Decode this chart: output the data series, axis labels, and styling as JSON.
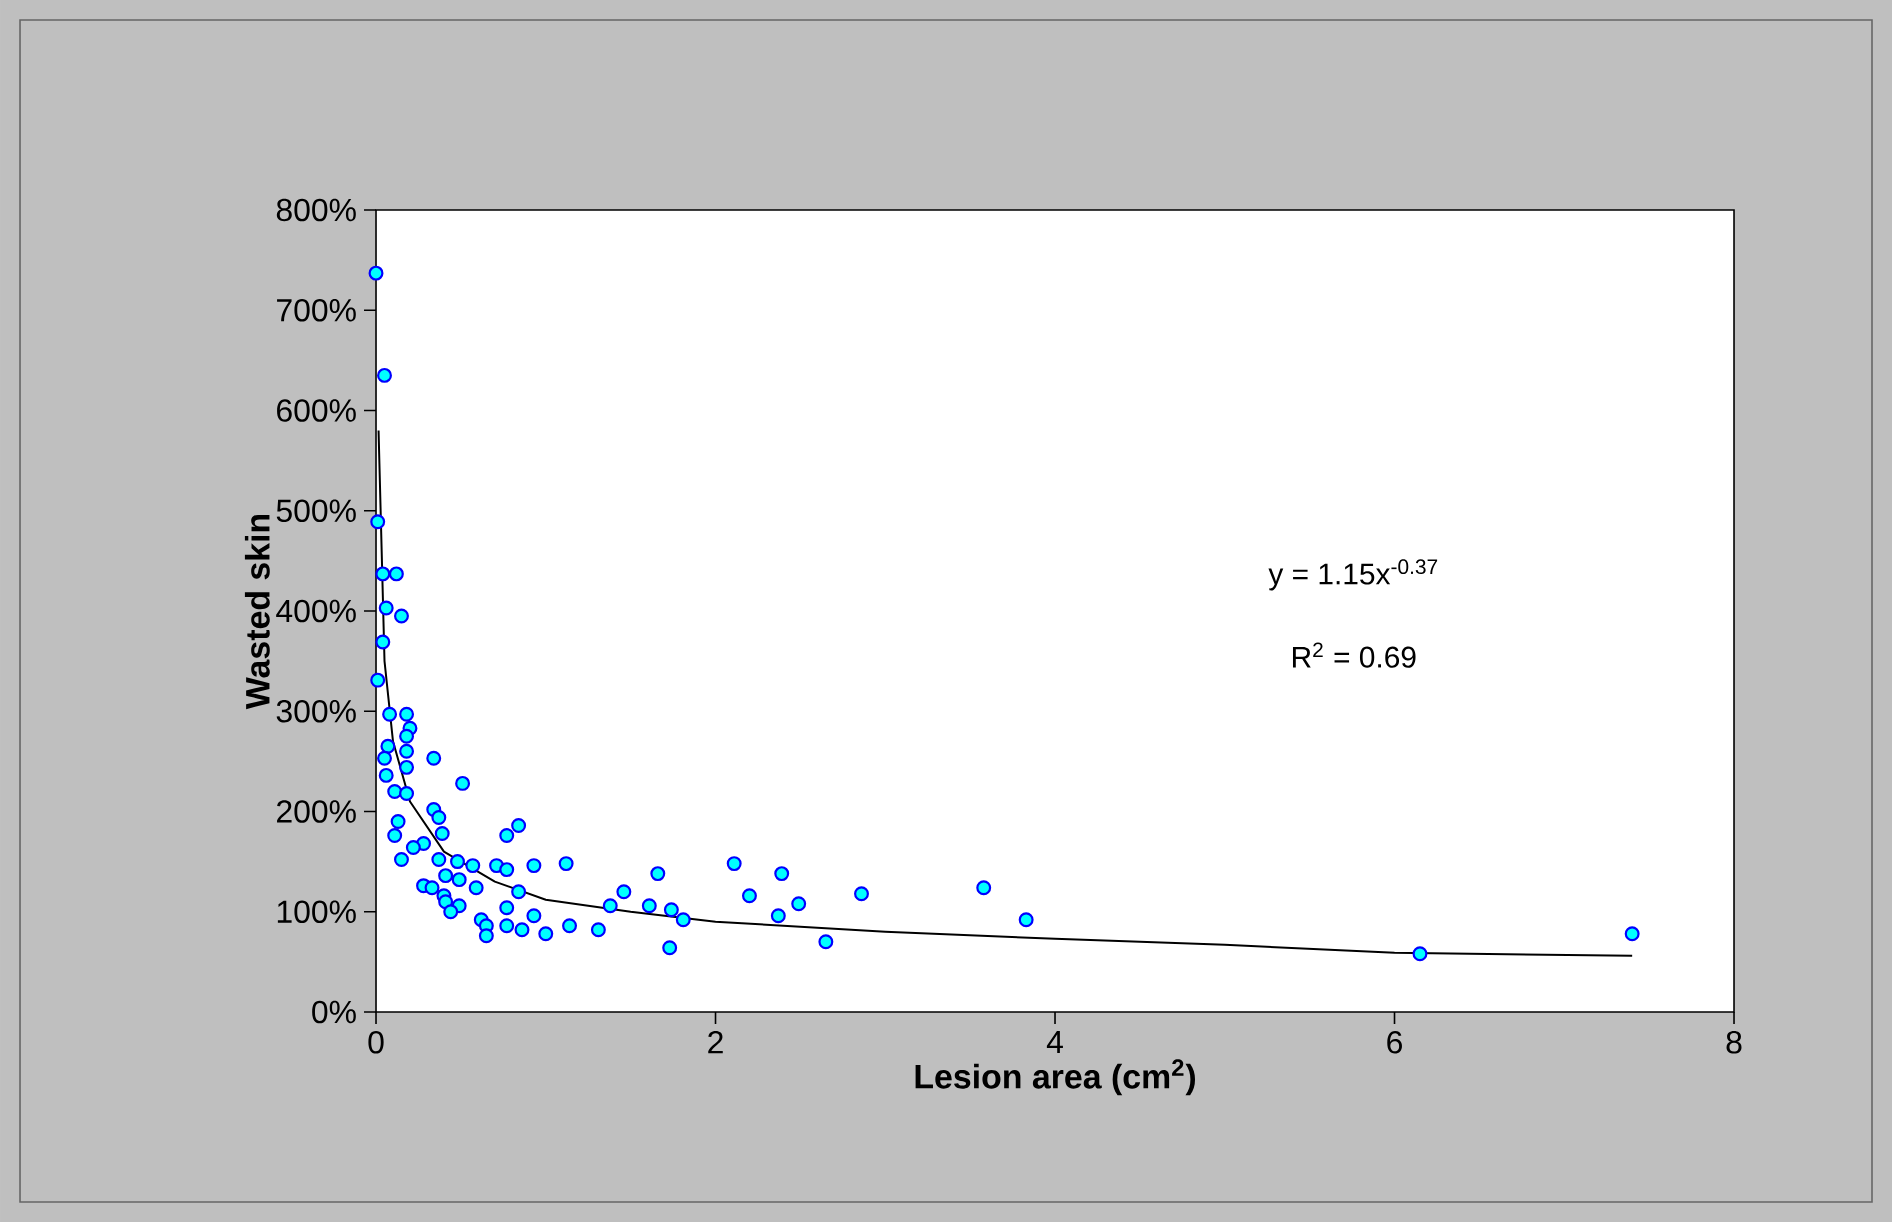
{
  "chart_data": {
    "type": "scatter",
    "xlabel": "Lesion area (cm$^{2}$)",
    "ylabel": "Wasted skin",
    "xlim": [
      0,
      8
    ],
    "xticks": [
      0,
      2,
      4,
      6,
      8
    ],
    "ylim": [
      0,
      800
    ],
    "yticks": [
      {
        "value": 0,
        "label": "0%"
      },
      {
        "value": 100,
        "label": "100%"
      },
      {
        "value": 200,
        "label": "200%"
      },
      {
        "value": 300,
        "label": "300%"
      },
      {
        "value": 400,
        "label": "400%"
      },
      {
        "value": 500,
        "label": "500%"
      },
      {
        "value": 600,
        "label": "600%"
      },
      {
        "value": 700,
        "label": "700%"
      },
      {
        "value": 800,
        "label": "800%"
      }
    ],
    "grid": false,
    "annotations": [
      "y = 1.15x$^{-0.37}$",
      "R$^{2}$ = 0.69"
    ],
    "series": [
      {
        "color": "#00ffff",
        "marker": "circle",
        "x": [
          0.0,
          0.05,
          0.01,
          0.04,
          0.12,
          0.06,
          0.15,
          0.04,
          0.01,
          0.08,
          0.18,
          0.2,
          0.18,
          0.07,
          0.18,
          0.05,
          0.34,
          0.18,
          0.06,
          0.51,
          0.11,
          0.18,
          0.34,
          0.37,
          0.13,
          0.39,
          0.11,
          0.77,
          0.84,
          0.28,
          0.22,
          0.15,
          0.37,
          0.48,
          0.57,
          0.71,
          0.77,
          0.93,
          1.12,
          1.66,
          2.11,
          0.41,
          0.49,
          0.28,
          0.33,
          0.59,
          0.84,
          1.46,
          0.4,
          0.41,
          0.49,
          0.44,
          0.77,
          1.38,
          1.61,
          1.74,
          1.81,
          0.93,
          0.62,
          0.65,
          0.77,
          0.86,
          1.0,
          1.14,
          1.31,
          0.65,
          1.73,
          2.2,
          2.39,
          2.49,
          2.37,
          2.65,
          2.86,
          3.58,
          3.83,
          6.15,
          7.4
        ],
        "values": [
          737,
          635,
          489,
          437,
          437,
          403,
          395,
          369,
          331,
          297,
          297,
          283,
          275,
          265,
          260,
          253,
          253,
          244,
          236,
          228,
          220,
          218,
          202,
          194,
          190,
          178,
          176,
          176,
          186,
          168,
          164,
          152,
          152,
          150,
          146,
          146,
          142,
          146,
          148,
          138,
          148,
          136,
          132,
          126,
          124,
          124,
          120,
          120,
          116,
          110,
          106,
          100,
          104,
          106,
          106,
          102,
          92,
          96,
          92,
          86,
          86,
          82,
          78,
          86,
          82,
          76,
          64,
          116,
          138,
          108,
          96,
          70,
          118,
          124,
          92,
          58,
          78
        ]
      },
      {
        "type": "line",
        "color": "#000000",
        "marker": "none",
        "line_style": "solid",
        "x": [
          0.015,
          0.05,
          0.1,
          0.2,
          0.4,
          0.7,
          1,
          1.5,
          2,
          3,
          4,
          5,
          6,
          7.4
        ],
        "values": [
          580,
          350,
          270,
          210,
          160,
          130,
          112,
          100,
          90,
          80,
          73,
          67,
          59,
          56
        ]
      }
    ]
  }
}
